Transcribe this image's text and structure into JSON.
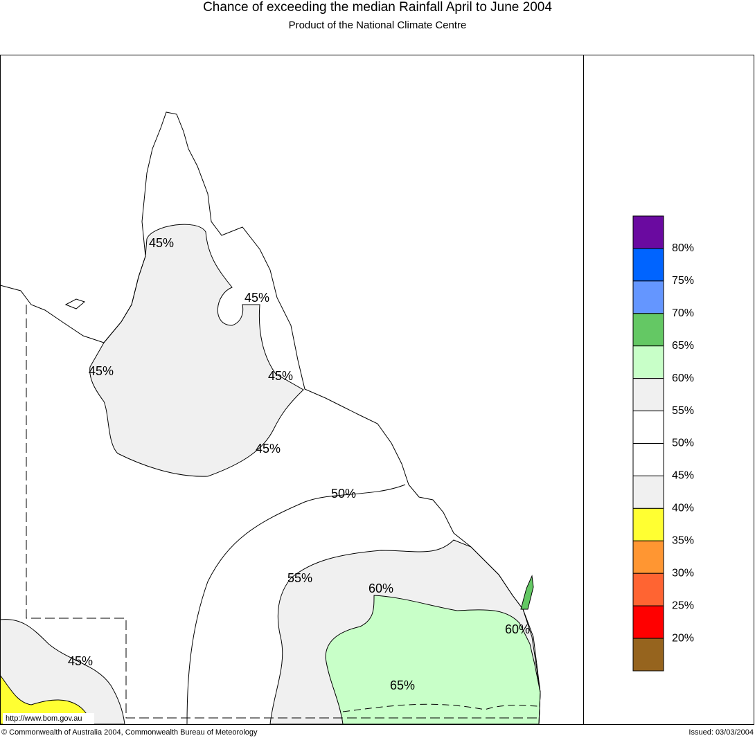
{
  "header": {
    "title": "Chance of exceeding the median Rainfall April to June 2004",
    "subtitle": "Product of the National Climate Centre"
  },
  "map": {
    "contour_labels": [
      "45%",
      "45%",
      "45%",
      "45%",
      "45%",
      "50%",
      "55%",
      "60%",
      "60%",
      "65%",
      "45%"
    ]
  },
  "legend": {
    "colors": [
      "#6a0aa0",
      "#0064ff",
      "#6496ff",
      "#64c864",
      "#c8ffc8",
      "#f0f0f0",
      "#ffffff",
      "#ffffff",
      "#f0f0f0",
      "#ffff32",
      "#ff9632",
      "#ff6432",
      "#ff0000",
      "#96641e"
    ],
    "labels": [
      "80%",
      "75%",
      "70%",
      "65%",
      "60%",
      "55%",
      "50%",
      "45%",
      "40%",
      "35%",
      "30%",
      "25%",
      "20%"
    ]
  },
  "footer": {
    "url": "http://www.bom.gov.au",
    "copyright": "© Commonwealth of Australia 2004, Commonwealth Bureau of Meteorology",
    "issued": "Issued: 03/03/2004"
  }
}
